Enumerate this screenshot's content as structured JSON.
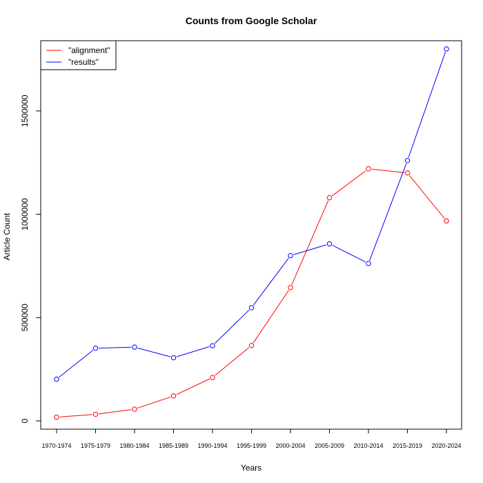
{
  "chart_data": {
    "type": "line",
    "title": "Counts from Google Scholar",
    "xlabel": "Years",
    "ylabel": "Article Count",
    "categories": [
      "1970-1974",
      "1975-1979",
      "1980-1984",
      "1985-1989",
      "1990-1994",
      "1995-1999",
      "2000-2004",
      "2005-2009",
      "2010-2014",
      "2015-2019",
      "2020-2024"
    ],
    "yticks": [
      0,
      500000,
      1000000,
      1500000
    ],
    "ytick_labels": [
      "0",
      "500000",
      "1000000",
      "1500000"
    ],
    "ylim": [
      -40000,
      1840000
    ],
    "grid": false,
    "legend_position": "top-left",
    "series": [
      {
        "name": "\"alignment\"",
        "color": "#ff0000",
        "values": [
          18000,
          32000,
          57000,
          121000,
          210000,
          365000,
          645000,
          1080000,
          1220000,
          1200000,
          968000
        ]
      },
      {
        "name": "\"results\"",
        "color": "#0000ff",
        "values": [
          202000,
          352000,
          357000,
          306000,
          364000,
          548000,
          800000,
          857000,
          762000,
          1260000,
          1800000
        ]
      }
    ]
  }
}
